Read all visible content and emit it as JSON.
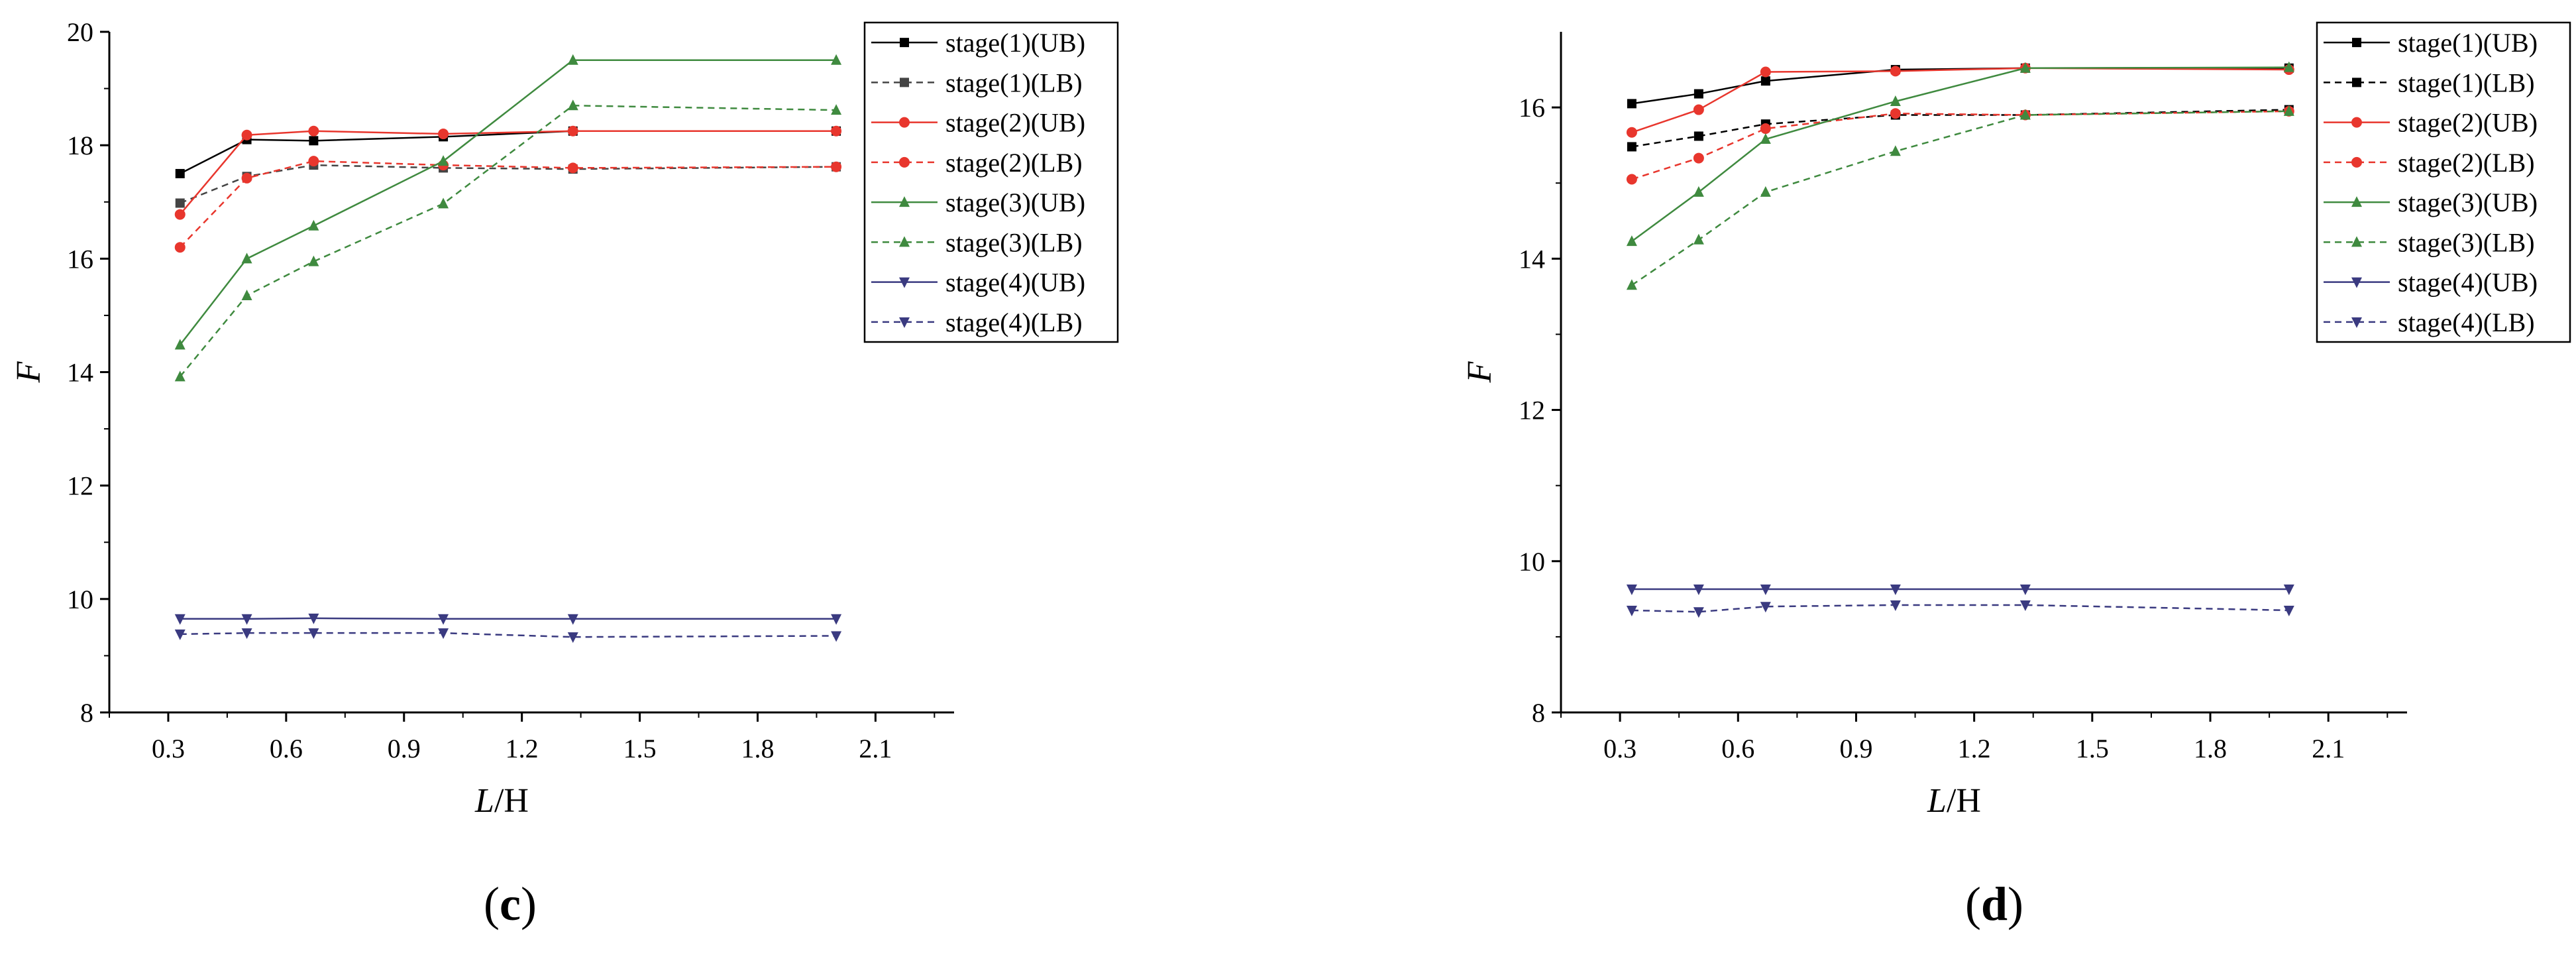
{
  "chart_data": [
    {
      "type": "line",
      "panel_label": "c",
      "xlabel_italic": "L",
      "xlabel_rest": "/H",
      "ylabel": "F",
      "xlim": [
        0.15,
        2.3
      ],
      "ylim": [
        8,
        20
      ],
      "xticks": [
        0.3,
        0.6,
        0.9,
        1.2,
        1.5,
        1.8,
        2.1
      ],
      "xtick_labels": [
        "0.3",
        "0.6",
        "0.9",
        "1.2",
        "1.5",
        "1.8",
        "2.1"
      ],
      "yticks": [
        8,
        10,
        12,
        14,
        16,
        18,
        20
      ],
      "ytick_labels": [
        "8",
        "10",
        "12",
        "14",
        "16",
        "18",
        "20"
      ],
      "legend_position": "top-right",
      "x": [
        0.33,
        0.5,
        0.67,
        1.0,
        1.33,
        2.0
      ],
      "series": [
        {
          "name": "stage(1)(UB)",
          "color": "#000000",
          "dash": false,
          "marker": "square",
          "values": [
            17.5,
            18.1,
            18.08,
            18.15,
            18.25,
            18.25
          ]
        },
        {
          "name": "stage(1)(LB)",
          "color": "#444444",
          "dash": true,
          "marker": "square",
          "values": [
            16.98,
            17.45,
            17.65,
            17.6,
            17.58,
            17.62
          ]
        },
        {
          "name": "stage(2)(UB)",
          "color": "#e8362d",
          "dash": false,
          "marker": "circle",
          "values": [
            16.78,
            18.18,
            18.25,
            18.2,
            18.25,
            18.25
          ]
        },
        {
          "name": "stage(2)(LB)",
          "color": "#e8362d",
          "dash": true,
          "marker": "circle",
          "values": [
            16.2,
            17.42,
            17.72,
            17.65,
            17.6,
            17.62
          ]
        },
        {
          "name": "stage(3)(UB)",
          "color": "#3f8a3f",
          "dash": false,
          "marker": "triangle-up",
          "values": [
            14.48,
            16.0,
            16.58,
            17.72,
            19.5,
            19.5
          ]
        },
        {
          "name": "stage(3)(LB)",
          "color": "#3f8a3f",
          "dash": true,
          "marker": "triangle-up",
          "values": [
            13.92,
            15.35,
            15.95,
            16.97,
            18.7,
            18.62
          ]
        },
        {
          "name": "stage(4)(UB)",
          "color": "#3a3a80",
          "dash": false,
          "marker": "triangle-down",
          "values": [
            9.65,
            9.65,
            9.66,
            9.65,
            9.65,
            9.65
          ]
        },
        {
          "name": "stage(4)(LB)",
          "color": "#3a3a80",
          "dash": true,
          "marker": "triangle-down",
          "values": [
            9.38,
            9.4,
            9.4,
            9.4,
            9.33,
            9.35
          ]
        }
      ]
    },
    {
      "type": "line",
      "panel_label": "d",
      "xlabel_italic": "L",
      "xlabel_rest": "/H",
      "ylabel": "F",
      "xlim": [
        0.15,
        2.3
      ],
      "ylim": [
        8,
        17
      ],
      "xticks": [
        0.3,
        0.6,
        0.9,
        1.2,
        1.5,
        1.8,
        2.1
      ],
      "xtick_labels": [
        "0.3",
        "0.6",
        "0.9",
        "1.2",
        "1.5",
        "1.8",
        "2.1"
      ],
      "yticks": [
        8,
        10,
        12,
        14,
        16
      ],
      "ytick_labels": [
        "8",
        "10",
        "12",
        "14",
        "16"
      ],
      "legend_position": "top-right",
      "x": [
        0.33,
        0.5,
        0.67,
        1.0,
        1.33,
        2.0
      ],
      "series": [
        {
          "name": "stage(1)(UB)",
          "color": "#000000",
          "dash": false,
          "marker": "square",
          "values": [
            16.05,
            16.18,
            16.35,
            16.5,
            16.52,
            16.52
          ]
        },
        {
          "name": "stage(1)(LB)",
          "color": "#000000",
          "dash": true,
          "marker": "square",
          "values": [
            15.48,
            15.62,
            15.78,
            15.9,
            15.9,
            15.97
          ]
        },
        {
          "name": "stage(2)(UB)",
          "color": "#e8362d",
          "dash": false,
          "marker": "circle",
          "values": [
            15.67,
            15.97,
            16.47,
            16.48,
            16.52,
            16.5
          ]
        },
        {
          "name": "stage(2)(LB)",
          "color": "#e8362d",
          "dash": true,
          "marker": "circle",
          "values": [
            15.05,
            15.33,
            15.72,
            15.92,
            15.9,
            15.95
          ]
        },
        {
          "name": "stage(3)(UB)",
          "color": "#3f8a3f",
          "dash": false,
          "marker": "triangle-up",
          "values": [
            14.23,
            14.88,
            15.58,
            16.08,
            16.52,
            16.53
          ]
        },
        {
          "name": "stage(3)(LB)",
          "color": "#3f8a3f",
          "dash": true,
          "marker": "triangle-up",
          "values": [
            13.65,
            14.25,
            14.88,
            15.42,
            15.9,
            15.95
          ]
        },
        {
          "name": "stage(4)(UB)",
          "color": "#3a3a80",
          "dash": false,
          "marker": "triangle-down",
          "values": [
            9.63,
            9.63,
            9.63,
            9.63,
            9.63,
            9.63
          ]
        },
        {
          "name": "stage(4)(LB)",
          "color": "#3a3a80",
          "dash": true,
          "marker": "triangle-down",
          "values": [
            9.35,
            9.33,
            9.4,
            9.42,
            9.42,
            9.35
          ]
        }
      ]
    }
  ]
}
